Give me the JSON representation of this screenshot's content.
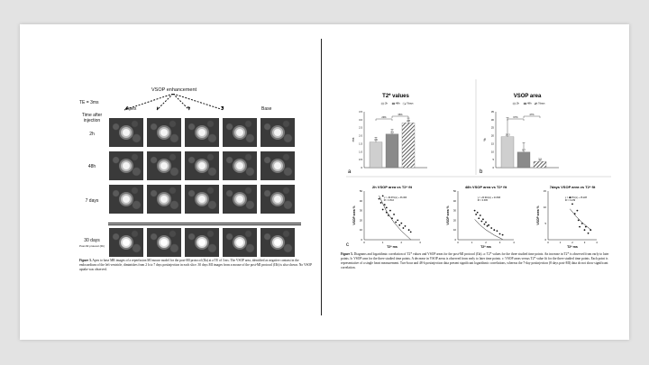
{
  "left_page": {
    "te_label": "TE = 3ms",
    "enhancement_label": "VSOP enhancement",
    "col_labels": [
      "Apex",
      "Base"
    ],
    "rows": [
      {
        "label": "Time after injection",
        "sub": ""
      },
      {
        "label": "2h",
        "sub": ""
      },
      {
        "label": "48h",
        "sub": ""
      },
      {
        "label": "7 days",
        "sub": ""
      },
      {
        "label": "30 days",
        "sub": "Post-MI protocol (IIb)"
      }
    ],
    "caption": {
      "label": "Figure 3.",
      "text": "Apex to base MR images of a reperfusion MI mouse model for the post-MI protocol (IIa) at a TE of 3 ms. The VSOP area, identified as negative contrast in the endocardium of the left ventricle, diminishes from 2 h to 7 days postinjection in each slice. 30 days MI images from a mouse of the post-MI protocol (IIb) is also shown. No VSOP uptake was observed."
    }
  },
  "right_page": {
    "caption": {
      "label": "Figure 5.",
      "text": "Diagrams and logarithmic correlation of T2* values and VSOP areas for the post-MI protocol (IIa). a: T2* values for the three studied time points. An increase in T2* is observed from early to later points. b: VSOP area for the three studied time points. A decrease in VSOP areas is observed from early to later time points. c: VSOP areas versus T2* value fit for the three studied time points. Each point is representative of a single heart measurement. Two-hour and 48-h postinjection data present significant logarithmic correlations, whereas the 7-day postinjection (8 days post-MI) data do not show significant correlation."
    },
    "panel_letters": [
      "a",
      "b",
      "c"
    ]
  },
  "colors": {
    "bar_light": "#cfcfcf",
    "bar_mid": "#8a8a8a",
    "page_bg": "#ffffff",
    "backdrop": "#e3e3e3"
  },
  "chart_data": [
    {
      "type": "bar",
      "title": "T2* values",
      "ylabel": "ms",
      "legend": [
        "2h",
        "48h",
        "7days"
      ],
      "categories": [
        "2h",
        "48h",
        "7days"
      ],
      "values": [
        1.6,
        2.1,
        2.8
      ],
      "errors": [
        0.3,
        0.3,
        0.3
      ],
      "ylim": [
        0,
        3.5
      ],
      "yticks": [
        "0",
        "0.5",
        "1.0",
        "1.5",
        "2.0",
        "2.5",
        "3.0",
        "3.5"
      ],
      "value_labels": [
        "1.6",
        "2.1",
        "2.8"
      ],
      "significance": [
        "29%",
        "36%"
      ]
    },
    {
      "type": "bar",
      "title": "VSOP area",
      "ylabel": "%",
      "legend": [
        "2h",
        "48h",
        "7days"
      ],
      "categories": [
        "2h",
        "48h",
        "7days"
      ],
      "values": [
        19.3,
        9.7,
        3.9
      ],
      "errors": [
        12,
        6,
        1
      ],
      "ylim": [
        0,
        35
      ],
      "yticks": [
        "0",
        "5",
        "10",
        "15",
        "20",
        "25",
        "30",
        "35"
      ],
      "value_labels": [
        "19.3",
        "9.7",
        "3.9"
      ],
      "significance": [
        "67%",
        "47%"
      ]
    },
    {
      "type": "scatter",
      "title": "2h VSOP area vs T2* fit",
      "xlabel": "T2* ms",
      "ylabel": "VSOP area %",
      "xlim": [
        0,
        3
      ],
      "ylim": [
        0,
        50
      ],
      "xticks": [
        "0",
        "1",
        "2",
        "3"
      ],
      "yticks": [
        "0",
        "10",
        "20",
        "30",
        "40",
        "50"
      ],
      "equation": "y = -39.67ln(x) + 36.466",
      "r2": "R² = 0.516",
      "x": [
        0.8,
        0.9,
        1.0,
        1.0,
        1.1,
        1.2,
        1.2,
        1.3,
        1.4,
        1.5,
        1.6,
        1.7,
        1.8,
        1.9,
        2.0,
        2.1,
        2.2,
        2.4,
        2.5
      ],
      "y": [
        42,
        38,
        45,
        31,
        36,
        28,
        33,
        25,
        30,
        22,
        26,
        18,
        20,
        15,
        17,
        12,
        14,
        10,
        8
      ],
      "fit": [
        [
          0.8,
          45.3
        ],
        [
          1.2,
          29.2
        ],
        [
          1.6,
          17.8
        ],
        [
          2.0,
          9.0
        ],
        [
          2.5,
          0.1
        ]
      ]
    },
    {
      "type": "scatter",
      "title": "48h VSOP area vs T2* fit",
      "xlabel": "T2* ms",
      "ylabel": "VSOP area %",
      "xlim": [
        0,
        4
      ],
      "ylim": [
        0,
        50
      ],
      "xticks": [
        "0",
        "1",
        "2",
        "3",
        "4"
      ],
      "yticks": [
        "0",
        "10",
        "20",
        "30",
        "40",
        "50"
      ],
      "equation": "y = -20.91ln(x) + 24.696",
      "r2": "R² = 0.395",
      "x": [
        1.2,
        1.3,
        1.4,
        1.5,
        1.6,
        1.7,
        1.8,
        1.9,
        2.0,
        2.1,
        2.2,
        2.4,
        2.6,
        2.8,
        3.0,
        3.2
      ],
      "y": [
        30,
        26,
        28,
        22,
        25,
        19,
        21,
        16,
        18,
        14,
        15,
        12,
        10,
        9,
        6,
        5
      ],
      "fit": [
        [
          1.2,
          20.9
        ],
        [
          1.6,
          14.9
        ],
        [
          2.0,
          10.2
        ],
        [
          2.6,
          4.7
        ],
        [
          3.2,
          0.4
        ]
      ]
    },
    {
      "type": "scatter",
      "title": "7days VSOP area vs T2* fit",
      "xlabel": "T2* ms",
      "ylabel": "VSOP area %",
      "xlim": [
        0,
        4
      ],
      "ylim": [
        0,
        15
      ],
      "xticks": [
        "0",
        "1",
        "2",
        "3",
        "4"
      ],
      "yticks": [
        "0",
        "5",
        "10",
        "15"
      ],
      "equation": "y = -9.67ln(x) + 15.228",
      "r2": "R² = 0.239",
      "x": [
        1.8,
        2.0,
        2.2,
        2.4,
        2.5,
        2.6,
        2.8,
        3.0,
        3.1,
        3.3,
        3.5
      ],
      "y": [
        13,
        11,
        8,
        9,
        6,
        4,
        5,
        3,
        4,
        2,
        3
      ],
      "fit": [
        [
          1.8,
          9.5
        ],
        [
          2.3,
          7.2
        ],
        [
          2.8,
          5.3
        ],
        [
          3.5,
          3.1
        ]
      ]
    }
  ]
}
